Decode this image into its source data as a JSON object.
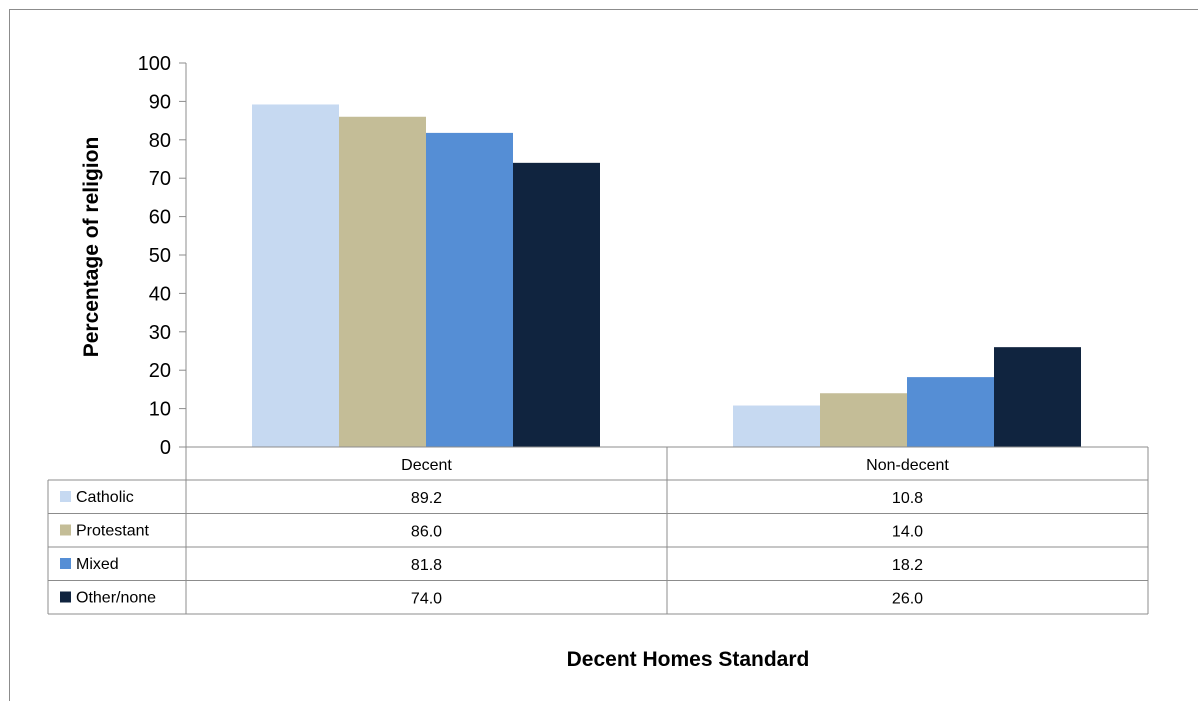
{
  "chart_data": {
    "type": "bar",
    "title": "",
    "xlabel": "Decent Homes Standard",
    "ylabel": "Percentage of religion",
    "ylim": [
      0,
      100
    ],
    "yticks": [
      0,
      10,
      20,
      30,
      40,
      50,
      60,
      70,
      80,
      90,
      100
    ],
    "categories": [
      "Decent",
      "Non-decent"
    ],
    "grid": false,
    "legend": "data-table-left",
    "series": [
      {
        "name": "Catholic",
        "color": "#c6d9f1",
        "values": [
          89.2,
          10.8
        ],
        "labels": [
          "89.2",
          "10.8"
        ]
      },
      {
        "name": "Protestant",
        "color": "#c4bd97",
        "values": [
          86.0,
          14.0
        ],
        "labels": [
          "86.0",
          "14.0"
        ]
      },
      {
        "name": "Mixed",
        "color": "#558ed5",
        "values": [
          81.8,
          18.2
        ],
        "labels": [
          "81.8",
          "18.2"
        ]
      },
      {
        "name": "Other/none",
        "color": "#10243f",
        "values": [
          74.0,
          26.0
        ],
        "labels": [
          "74.0",
          "26.0"
        ]
      }
    ]
  }
}
